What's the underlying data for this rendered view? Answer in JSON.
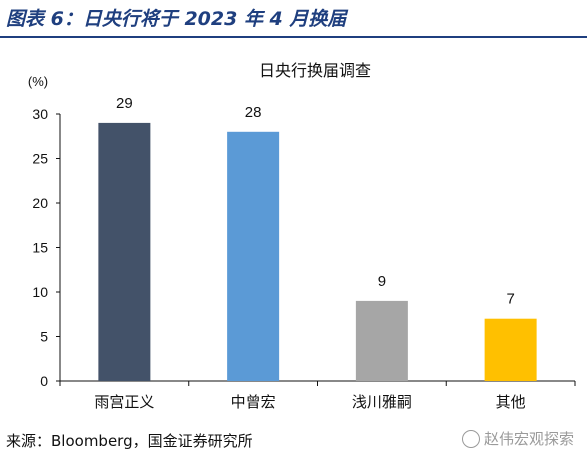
{
  "header": {
    "title": "图表 6：日央行将于 2023 年 4 月换届"
  },
  "footer": {
    "source": "来源：Bloomberg，国金证券研究所",
    "watermark": "赵伟宏观探索"
  },
  "chart_data": {
    "type": "bar",
    "title": "日央行换届调查",
    "unit_label": "(%)",
    "categories": [
      "雨宫正义",
      "中曾宏",
      "浅川雅嗣",
      "其他"
    ],
    "values": [
      29,
      28,
      9,
      7
    ],
    "colors": [
      "#435269",
      "#5b9ad6",
      "#a6a6a6",
      "#ffc000"
    ],
    "ylim": [
      0,
      30
    ],
    "yticks": [
      0,
      5,
      10,
      15,
      20,
      25,
      30
    ],
    "grid": false,
    "legend": "none"
  }
}
